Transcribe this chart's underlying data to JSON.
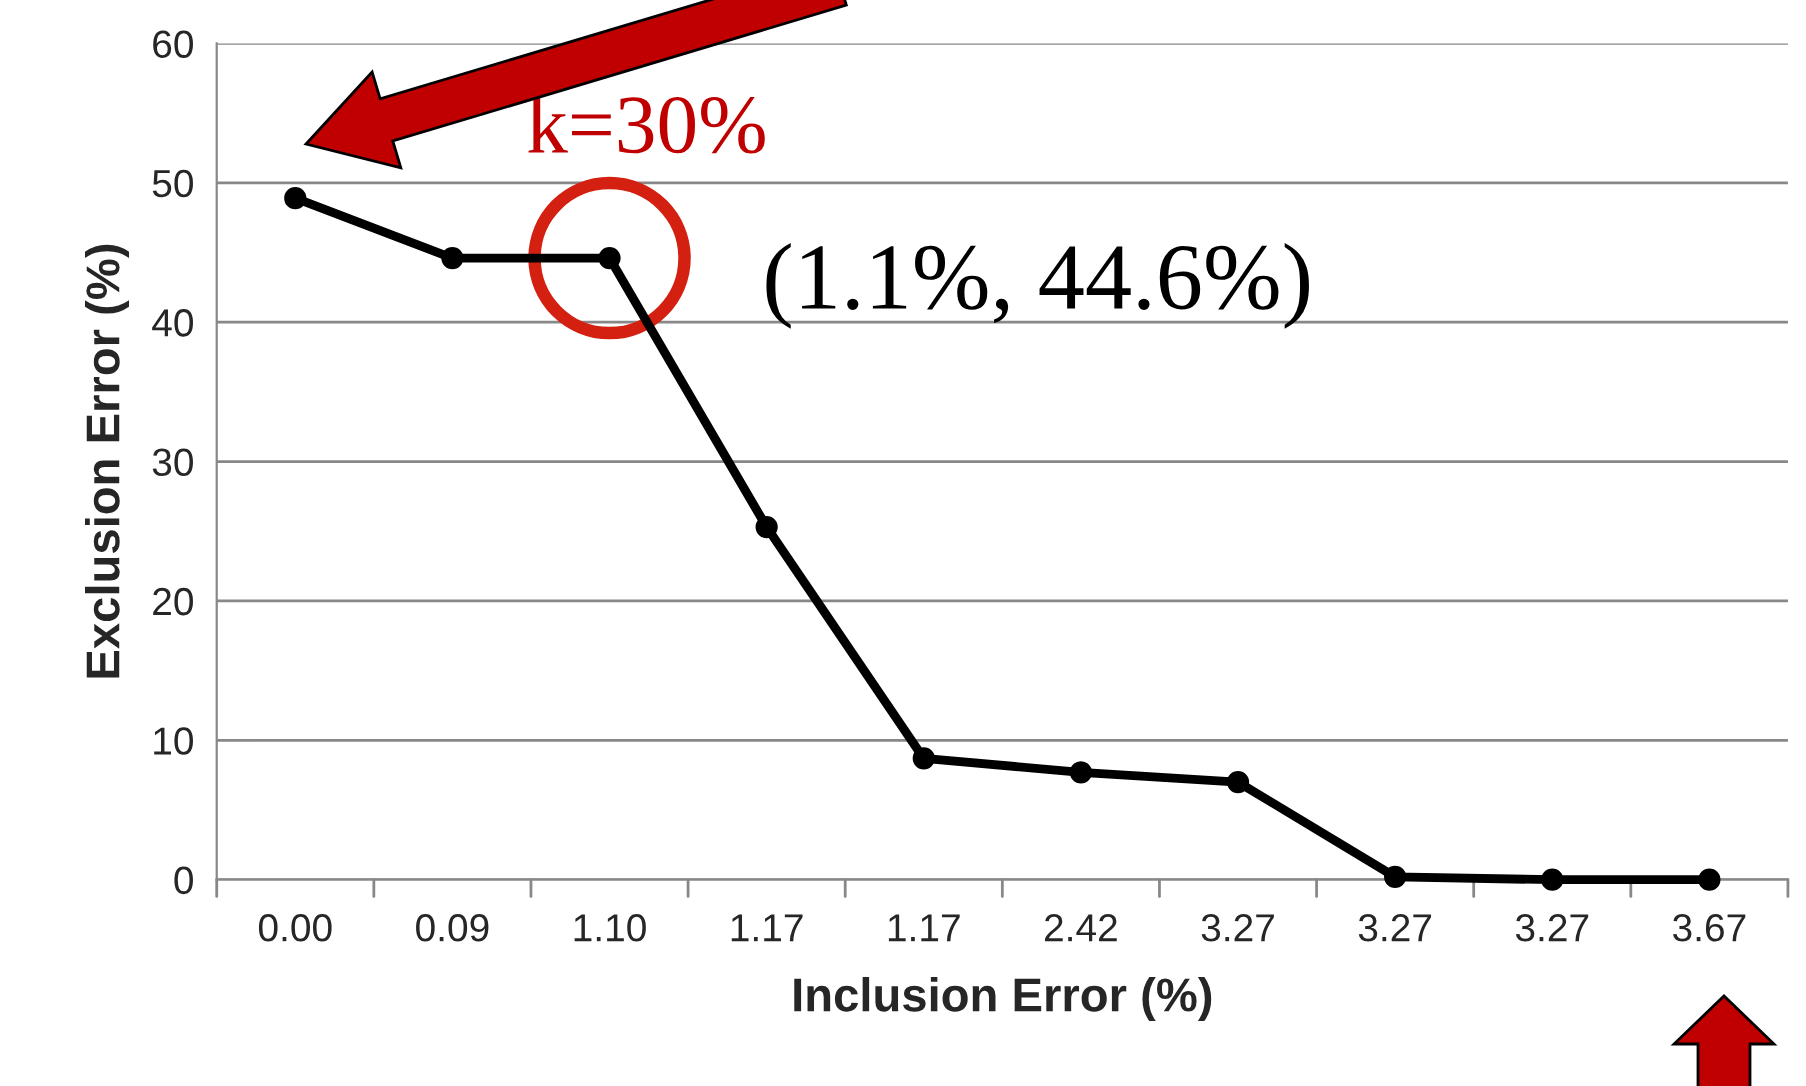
{
  "chart_data": {
    "type": "line",
    "xlabel": "Inclusion Error (%)",
    "ylabel": "Exclusion Error (%)",
    "categories": [
      "0.00",
      "0.09",
      "1.10",
      "1.17",
      "1.17",
      "2.42",
      "3.27",
      "3.27",
      "3.27",
      "3.67"
    ],
    "series": [
      {
        "color": "#000000",
        "values": [
          48.9,
          44.6,
          44.6,
          25.3,
          8.7,
          7.7,
          7.0,
          0.2,
          0,
          0
        ]
      }
    ],
    "ylim": [
      0,
      60
    ],
    "yticks": [
      0,
      10,
      20,
      30,
      40,
      50,
      60
    ],
    "grid": "y",
    "marker": "circle",
    "line_style": "solid",
    "annotations": [
      {
        "text": "k=30%",
        "x": "1.10",
        "y": 44.6
      },
      {
        "text": "(1.1%, 44.6%)",
        "x": "1.10",
        "y": 44.6
      }
    ]
  }
}
